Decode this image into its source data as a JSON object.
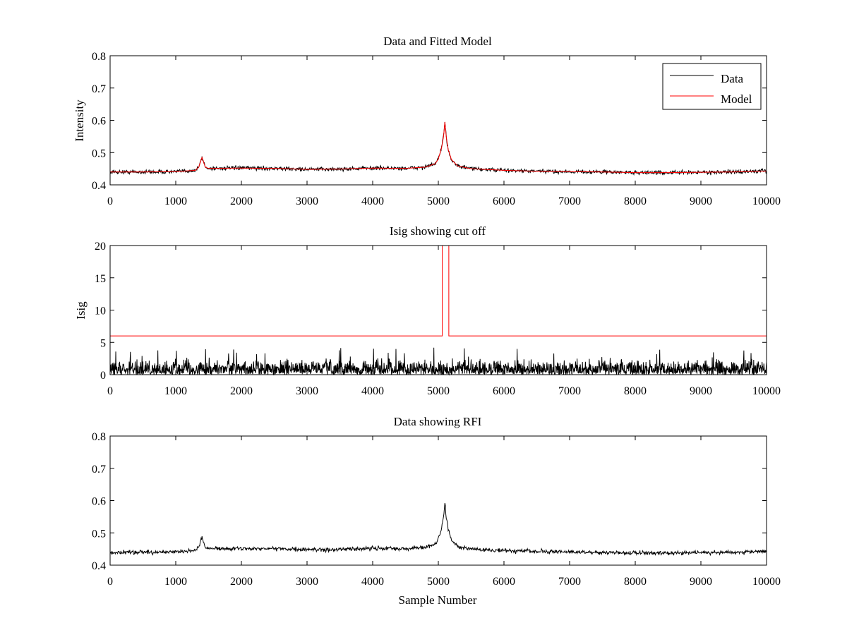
{
  "figure": {
    "panels": [
      {
        "id": "top",
        "title": "Data and Fitted Model",
        "ylabel": "Intensity",
        "xlabel": "",
        "xlim": [
          0,
          10000
        ],
        "ylim": [
          0.4,
          0.8
        ],
        "xticks": [
          0,
          1000,
          2000,
          3000,
          4000,
          5000,
          6000,
          7000,
          8000,
          9000,
          10000
        ],
        "yticks": [
          0.4,
          0.5,
          0.6,
          0.7,
          0.8
        ],
        "ytick_labels": [
          "0.4",
          "0.5",
          "0.6",
          "0.7",
          "0.8"
        ],
        "legend": {
          "placement": "top-right",
          "entries": [
            "Data",
            "Model"
          ]
        }
      },
      {
        "id": "middle",
        "title": "Isig showing cut off",
        "ylabel": "Isig",
        "xlabel": "",
        "xlim": [
          0,
          10000
        ],
        "ylim": [
          0,
          20
        ],
        "xticks": [
          0,
          1000,
          2000,
          3000,
          4000,
          5000,
          6000,
          7000,
          8000,
          9000,
          10000
        ],
        "yticks": [
          0,
          5,
          10,
          15,
          20
        ],
        "ytick_labels": [
          "0",
          "5",
          "10",
          "15",
          "20"
        ]
      },
      {
        "id": "bottom",
        "title": "Data showing RFI",
        "ylabel": "",
        "xlabel": "Sample Number",
        "xlim": [
          0,
          10000
        ],
        "ylim": [
          0.4,
          0.8
        ],
        "xticks": [
          0,
          1000,
          2000,
          3000,
          4000,
          5000,
          6000,
          7000,
          8000,
          9000,
          10000
        ],
        "yticks": [
          0.4,
          0.5,
          0.6,
          0.7,
          0.8
        ],
        "ytick_labels": [
          "0.4",
          "0.5",
          "0.6",
          "0.7",
          "0.8"
        ]
      }
    ]
  },
  "chart_data": [
    {
      "type": "line",
      "title": "Data and Fitted Model",
      "xlabel": "",
      "ylabel": "Intensity",
      "xlim": [
        0,
        10000
      ],
      "ylim": [
        0.4,
        0.8
      ],
      "grid": false,
      "legend_placement": "top-right",
      "series": [
        {
          "name": "Data",
          "color": "#000000",
          "x": [
            0,
            500,
            1000,
            1300,
            1350,
            1400,
            1450,
            1500,
            2000,
            2500,
            3000,
            3500,
            4000,
            4500,
            4800,
            4950,
            5000,
            5050,
            5080,
            5100,
            5120,
            5150,
            5200,
            5300,
            5500,
            6000,
            6500,
            7000,
            7500,
            8000,
            8500,
            9000,
            9500,
            10000
          ],
          "y": [
            0.44,
            0.44,
            0.441,
            0.445,
            0.455,
            0.485,
            0.455,
            0.451,
            0.452,
            0.451,
            0.448,
            0.449,
            0.452,
            0.451,
            0.455,
            0.465,
            0.48,
            0.515,
            0.55,
            0.595,
            0.55,
            0.51,
            0.478,
            0.458,
            0.45,
            0.445,
            0.442,
            0.441,
            0.44,
            0.438,
            0.438,
            0.439,
            0.44,
            0.443
          ],
          "noise_amplitude": 0.006
        },
        {
          "name": "Model",
          "color": "#ff0000",
          "x": [
            0,
            500,
            1000,
            1300,
            1350,
            1400,
            1450,
            1500,
            2000,
            2500,
            3000,
            3500,
            4000,
            4500,
            4800,
            4950,
            5000,
            5050,
            5080,
            5100,
            5120,
            5150,
            5200,
            5300,
            5500,
            6000,
            6500,
            7000,
            7500,
            8000,
            8500,
            9000,
            9500,
            10000
          ],
          "y": [
            0.44,
            0.44,
            0.441,
            0.445,
            0.455,
            0.485,
            0.455,
            0.451,
            0.452,
            0.451,
            0.448,
            0.449,
            0.452,
            0.451,
            0.455,
            0.465,
            0.48,
            0.515,
            0.55,
            0.595,
            0.55,
            0.51,
            0.478,
            0.458,
            0.45,
            0.445,
            0.442,
            0.441,
            0.44,
            0.438,
            0.438,
            0.439,
            0.44,
            0.443
          ]
        }
      ]
    },
    {
      "type": "line",
      "title": "Isig showing cut off",
      "xlabel": "",
      "ylabel": "Isig",
      "xlim": [
        0,
        10000
      ],
      "ylim": [
        0,
        20
      ],
      "grid": false,
      "series": [
        {
          "color": "#000000",
          "x": [
            0,
            10000
          ],
          "y_baseline": 0.8,
          "noise_amplitude": 2.5,
          "max_y": 4.2
        },
        {
          "color": "#ff0000",
          "x": [
            0,
            5060,
            5060,
            5160,
            5160,
            10000
          ],
          "y": [
            6,
            6,
            20,
            20,
            6,
            6
          ]
        }
      ]
    },
    {
      "type": "line",
      "title": "Data showing RFI",
      "xlabel": "Sample Number",
      "ylabel": "",
      "xlim": [
        0,
        10000
      ],
      "ylim": [
        0.4,
        0.8
      ],
      "grid": false,
      "series": [
        {
          "color": "#000000",
          "x": [
            0,
            500,
            1000,
            1300,
            1350,
            1400,
            1450,
            1500,
            2000,
            2500,
            3000,
            3500,
            4000,
            4500,
            4800,
            4950,
            5000,
            5050,
            5080,
            5100,
            5120,
            5150,
            5200,
            5300,
            5500,
            6000,
            6500,
            7000,
            7500,
            8000,
            8500,
            9000,
            9500,
            10000
          ],
          "y": [
            0.44,
            0.44,
            0.441,
            0.445,
            0.455,
            0.485,
            0.455,
            0.451,
            0.452,
            0.451,
            0.448,
            0.449,
            0.452,
            0.451,
            0.455,
            0.465,
            0.48,
            0.515,
            0.55,
            0.595,
            0.55,
            0.51,
            0.478,
            0.458,
            0.45,
            0.445,
            0.442,
            0.441,
            0.44,
            0.438,
            0.438,
            0.439,
            0.44,
            0.443
          ],
          "noise_amplitude": 0.006
        }
      ]
    }
  ]
}
